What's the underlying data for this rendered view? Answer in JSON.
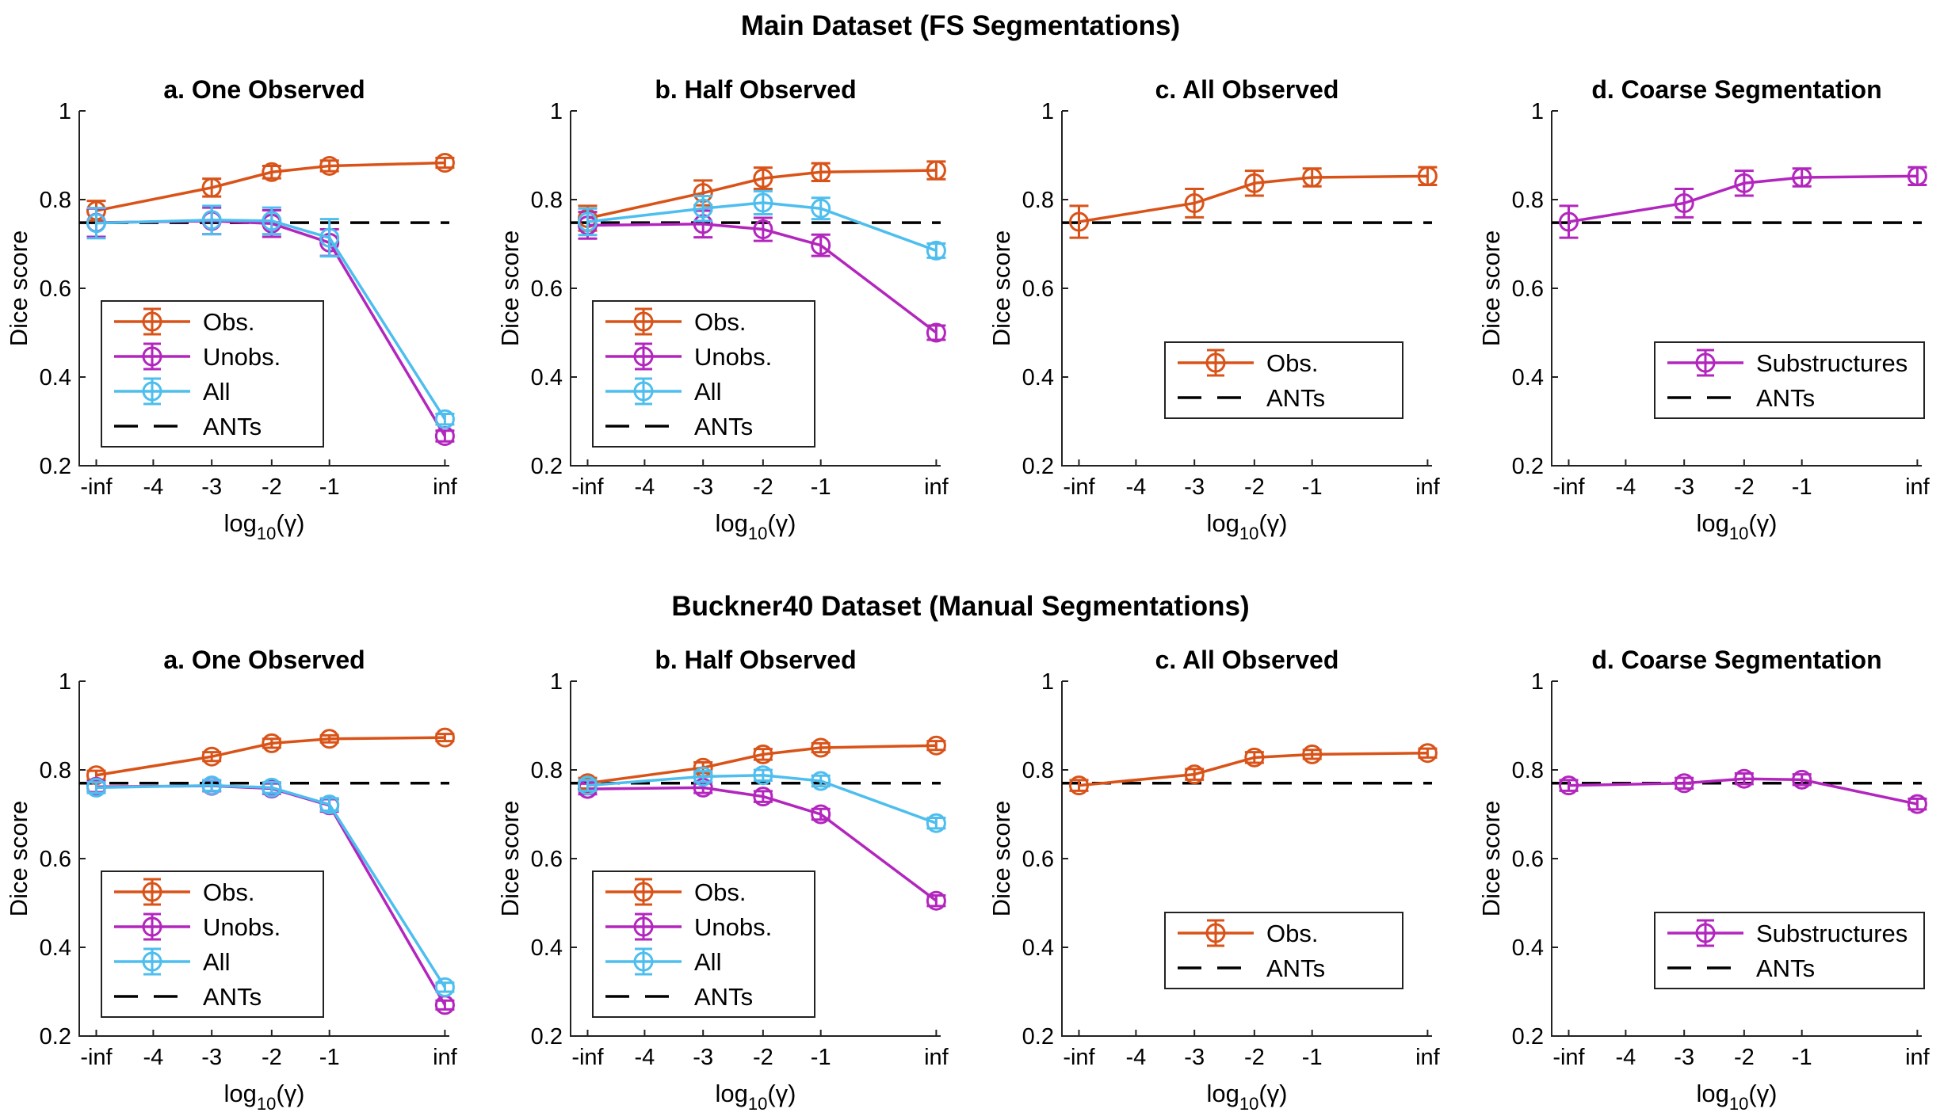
{
  "figure": {
    "row_titles": [
      "Main Dataset (FS Segmentations)",
      "Buckner40 Dataset (Manual Segmentations)"
    ]
  },
  "colors": {
    "obs": "#D95319",
    "unobs": "#B326BE",
    "all": "#4DBEEE",
    "ants": "#000000"
  },
  "chart_data": [
    {
      "type": "line",
      "row": 0,
      "col": 0,
      "title": "a. One Observed",
      "xlabel": "log10(γ)",
      "ylabel": "Dice score",
      "x_ticks": [
        "-inf",
        "-4",
        "-3",
        "-2",
        "-1",
        "inf"
      ],
      "y_ticks": [
        "0.2",
        "0.4",
        "0.6",
        "0.8",
        "1"
      ],
      "ylim": [
        0.2,
        1.0
      ],
      "x_points": [
        "-inf",
        "-3",
        "-2",
        "-1",
        "inf"
      ],
      "series": [
        {
          "name": "Obs.",
          "color_key": "obs",
          "values": [
            0.775,
            0.827,
            0.862,
            0.876,
            0.883
          ],
          "errors": [
            0.022,
            0.02,
            0.014,
            0.012,
            0.011
          ]
        },
        {
          "name": "Unobs.",
          "color_key": "unobs",
          "values": [
            0.748,
            0.752,
            0.746,
            0.703,
            0.267
          ],
          "errors": [
            0.032,
            0.03,
            0.03,
            0.03,
            0.012
          ]
        },
        {
          "name": "All",
          "color_key": "all",
          "values": [
            0.747,
            0.754,
            0.752,
            0.714,
            0.305
          ],
          "errors": [
            0.034,
            0.032,
            0.03,
            0.042,
            0.012
          ]
        }
      ],
      "reference": {
        "name": "ANTs",
        "value": 0.748
      },
      "legend": {
        "placement": "lower-left",
        "entries": [
          "Obs.",
          "Unobs.",
          "All",
          "ANTs"
        ]
      }
    },
    {
      "type": "line",
      "row": 0,
      "col": 1,
      "title": "b. Half Observed",
      "xlabel": "log10(γ)",
      "ylabel": "Dice score",
      "x_ticks": [
        "-inf",
        "-4",
        "-3",
        "-2",
        "-1",
        "inf"
      ],
      "y_ticks": [
        "0.2",
        "0.4",
        "0.6",
        "0.8",
        "1"
      ],
      "ylim": [
        0.2,
        1.0
      ],
      "x_points": [
        "-inf",
        "-3",
        "-2",
        "-1",
        "inf"
      ],
      "series": [
        {
          "name": "Obs.",
          "color_key": "obs",
          "values": [
            0.758,
            0.815,
            0.848,
            0.862,
            0.866
          ],
          "errors": [
            0.028,
            0.028,
            0.024,
            0.02,
            0.02
          ]
        },
        {
          "name": "Unobs.",
          "color_key": "unobs",
          "values": [
            0.742,
            0.745,
            0.733,
            0.697,
            0.5
          ],
          "errors": [
            0.03,
            0.03,
            0.026,
            0.024,
            0.016
          ]
        },
        {
          "name": "All",
          "color_key": "all",
          "values": [
            0.75,
            0.78,
            0.793,
            0.78,
            0.685
          ],
          "errors": [
            0.03,
            0.028,
            0.026,
            0.024,
            0.016
          ]
        }
      ],
      "reference": {
        "name": "ANTs",
        "value": 0.748
      },
      "legend": {
        "placement": "lower-left",
        "entries": [
          "Obs.",
          "Unobs.",
          "All",
          "ANTs"
        ]
      }
    },
    {
      "type": "line",
      "row": 0,
      "col": 2,
      "title": "c. All Observed",
      "xlabel": "log10(γ)",
      "ylabel": "Dice score",
      "x_ticks": [
        "-inf",
        "-4",
        "-3",
        "-2",
        "-1",
        "inf"
      ],
      "y_ticks": [
        "0.2",
        "0.4",
        "0.6",
        "0.8",
        "1"
      ],
      "ylim": [
        0.2,
        1.0
      ],
      "x_points": [
        "-inf",
        "-3",
        "-2",
        "-1",
        "inf"
      ],
      "series": [
        {
          "name": "Obs.",
          "color_key": "obs",
          "values": [
            0.75,
            0.792,
            0.837,
            0.85,
            0.853
          ],
          "errors": [
            0.036,
            0.032,
            0.028,
            0.02,
            0.02
          ]
        }
      ],
      "reference": {
        "name": "ANTs",
        "value": 0.748
      },
      "legend": {
        "placement": "lower-center",
        "entries": [
          "Obs.",
          "ANTs"
        ]
      }
    },
    {
      "type": "line",
      "row": 0,
      "col": 3,
      "title": "d. Coarse Segmentation",
      "xlabel": "log10(γ)",
      "ylabel": "Dice score",
      "x_ticks": [
        "-inf",
        "-4",
        "-3",
        "-2",
        "-1",
        "inf"
      ],
      "y_ticks": [
        "0.2",
        "0.4",
        "0.6",
        "0.8",
        "1"
      ],
      "ylim": [
        0.2,
        1.0
      ],
      "x_points": [
        "-inf",
        "-3",
        "-2",
        "-1",
        "inf"
      ],
      "series": [
        {
          "name": "Substructures",
          "color_key": "unobs",
          "values": [
            0.75,
            0.792,
            0.837,
            0.85,
            0.853
          ],
          "errors": [
            0.036,
            0.032,
            0.028,
            0.02,
            0.02
          ]
        }
      ],
      "reference": {
        "name": "ANTs",
        "value": 0.748
      },
      "legend": {
        "placement": "lower-center",
        "entries": [
          "Substructures",
          "ANTs"
        ]
      }
    },
    {
      "type": "line",
      "row": 1,
      "col": 0,
      "title": "a. One Observed",
      "xlabel": "log10(γ)",
      "ylabel": "Dice score",
      "x_ticks": [
        "-inf",
        "-4",
        "-3",
        "-2",
        "-1",
        "inf"
      ],
      "y_ticks": [
        "0.2",
        "0.4",
        "0.6",
        "0.8",
        "1"
      ],
      "ylim": [
        0.2,
        1.0
      ],
      "x_points": [
        "-inf",
        "-3",
        "-2",
        "-1",
        "inf"
      ],
      "series": [
        {
          "name": "Obs.",
          "color_key": "obs",
          "values": [
            0.788,
            0.83,
            0.86,
            0.87,
            0.873
          ],
          "errors": [
            0.01,
            0.01,
            0.01,
            0.008,
            0.008
          ]
        },
        {
          "name": "Unobs.",
          "color_key": "unobs",
          "values": [
            0.762,
            0.764,
            0.758,
            0.72,
            0.27
          ],
          "errors": [
            0.012,
            0.012,
            0.012,
            0.014,
            0.01
          ]
        },
        {
          "name": "All",
          "color_key": "all",
          "values": [
            0.76,
            0.765,
            0.76,
            0.722,
            0.31
          ],
          "errors": [
            0.012,
            0.012,
            0.012,
            0.014,
            0.01
          ]
        }
      ],
      "reference": {
        "name": "ANTs",
        "value": 0.77
      },
      "legend": {
        "placement": "lower-left",
        "entries": [
          "Obs.",
          "Unobs.",
          "All",
          "ANTs"
        ]
      }
    },
    {
      "type": "line",
      "row": 1,
      "col": 1,
      "title": "b. Half Observed",
      "xlabel": "log10(γ)",
      "ylabel": "Dice score",
      "x_ticks": [
        "-inf",
        "-4",
        "-3",
        "-2",
        "-1",
        "inf"
      ],
      "y_ticks": [
        "0.2",
        "0.4",
        "0.6",
        "0.8",
        "1"
      ],
      "ylim": [
        0.2,
        1.0
      ],
      "x_points": [
        "-inf",
        "-3",
        "-2",
        "-1",
        "inf"
      ],
      "series": [
        {
          "name": "Obs.",
          "color_key": "obs",
          "values": [
            0.77,
            0.805,
            0.835,
            0.85,
            0.855
          ],
          "errors": [
            0.012,
            0.012,
            0.012,
            0.01,
            0.01
          ]
        },
        {
          "name": "Unobs.",
          "color_key": "unobs",
          "values": [
            0.757,
            0.76,
            0.74,
            0.7,
            0.505
          ],
          "errors": [
            0.012,
            0.012,
            0.012,
            0.012,
            0.012
          ]
        },
        {
          "name": "All",
          "color_key": "all",
          "values": [
            0.765,
            0.785,
            0.788,
            0.775,
            0.68
          ],
          "errors": [
            0.012,
            0.012,
            0.012,
            0.012,
            0.012
          ]
        }
      ],
      "reference": {
        "name": "ANTs",
        "value": 0.77
      },
      "legend": {
        "placement": "lower-left",
        "entries": [
          "Obs.",
          "Unobs.",
          "All",
          "ANTs"
        ]
      }
    },
    {
      "type": "line",
      "row": 1,
      "col": 2,
      "title": "c. All Observed",
      "xlabel": "log10(γ)",
      "ylabel": "Dice score",
      "x_ticks": [
        "-inf",
        "-4",
        "-3",
        "-2",
        "-1",
        "inf"
      ],
      "y_ticks": [
        "0.2",
        "0.4",
        "0.6",
        "0.8",
        "1"
      ],
      "ylim": [
        0.2,
        1.0
      ],
      "x_points": [
        "-inf",
        "-3",
        "-2",
        "-1",
        "inf"
      ],
      "series": [
        {
          "name": "Obs.",
          "color_key": "obs",
          "values": [
            0.765,
            0.79,
            0.828,
            0.835,
            0.838
          ],
          "errors": [
            0.012,
            0.012,
            0.012,
            0.01,
            0.01
          ]
        }
      ],
      "reference": {
        "name": "ANTs",
        "value": 0.77
      },
      "legend": {
        "placement": "lower-center",
        "entries": [
          "Obs.",
          "ANTs"
        ]
      }
    },
    {
      "type": "line",
      "row": 1,
      "col": 3,
      "title": "d. Coarse Segmentation",
      "xlabel": "log10(γ)",
      "ylabel": "Dice score",
      "x_ticks": [
        "-inf",
        "-4",
        "-3",
        "-2",
        "-1",
        "inf"
      ],
      "y_ticks": [
        "0.2",
        "0.4",
        "0.6",
        "0.8",
        "1"
      ],
      "ylim": [
        0.2,
        1.0
      ],
      "x_points": [
        "-inf",
        "-3",
        "-2",
        "-1",
        "inf"
      ],
      "series": [
        {
          "name": "Substructures",
          "color_key": "unobs",
          "values": [
            0.765,
            0.77,
            0.78,
            0.778,
            0.723
          ],
          "errors": [
            0.012,
            0.012,
            0.012,
            0.012,
            0.012
          ]
        }
      ],
      "reference": {
        "name": "ANTs",
        "value": 0.77
      },
      "legend": {
        "placement": "lower-center",
        "entries": [
          "Substructures",
          "ANTs"
        ]
      }
    }
  ]
}
